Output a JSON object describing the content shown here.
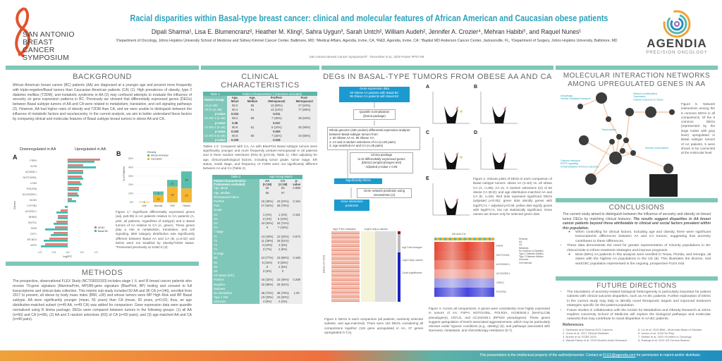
{
  "header": {
    "title": "Racial disparities within Basal-type breast cancer: clinical and molecular features of African American and Caucasian obese patients",
    "authors": "Dipali Sharma¹, Lisa E. Blumencranz², Heather M. Kling², Sahra Uygun³, Sarah Untch², William Audeh², Jennifer A. Crozier⁴, Mehran Habibi⁵, and Raquel Nunes¹",
    "affiliations": "¹Department of Oncology, Johns Hopkins University School of Medicine and Sidney Kimmel Cancer Center, Baltimore, MD; ²Medical Affairs, Agendia, Irvine, CA; ³R&D, Agendia, Irvine, CA; ⁴Baptist MD Anderson Cancer Center, Jacksonville, FL, ⁵Department of Surgery, Johns Hopkins University, Baltimore, MD",
    "meeting": "San Antonio Breast Cancer Symposium® - December 8-11, 2020    Poster #PS7-68",
    "logo_left": "SAN ANTONIO BREAST CANCER SYMPOSIUM",
    "logo_right": "AGENDIA",
    "logo_right_sub": "PRECISION ONCOLOGY"
  },
  "background": {
    "heading": "BACKGROUND",
    "text": "African American breast cancer (BC) patients (AA) are diagnosed at a younger age and present more frequently with triple-negative/Basal tumors than Caucasian American patients (CA) (1). High prevalence of obesity, type 2 diabetes mellitus (T2DM), and metabolic syndrome in AA (2) may confound attempts to evaluate the influence of ancestry on gene expression patterns in BC. Previously we showed that differentially expressed genes (DEGs) between Basal subtype tumors of AA and CA were related to metabolism, translation, and cell signaling pathways (3). However, AA had higher rates of obesity and T2DM than CA, and we were unable to distinguish between the influence of metabolic factors and race/ancestry. In the current analysis, we aim to better understand these factors by comparing clinical and molecular features of Basal subtype breast tumors in obese AA and CA."
  },
  "figure1": {
    "panel_a": "A",
    "panel_b": "B",
    "down_label": "Downregulated in AA",
    "up_label": "Upregulated in AA",
    "caption": "Figure 1.* Significant differentially expressed genes (adj. p≤0.05) in AA patients relative to CA patients (A, pink, all patients, regardless of subtype) and in Basal tumors of AA relative to CA (A, green). These genes play a role in metabolism, translation, and cell signaling. BMI category distribution was significantly different between Basal AA and CA (B, p=0.02) and DEGs were not stratified by obesity/T2DM status. *Presented previously at SABCS (3)"
  },
  "chart_data": [
    {
      "type": "bar",
      "orientation": "horizontal",
      "title": "",
      "xlabel": "log2FC",
      "ylabel": "Genes",
      "xlim": [
        -1.5,
        1.5
      ],
      "xticks": [
        "-1.0",
        "-0.5",
        "0.0",
        "0.5",
        "1.0"
      ],
      "categories": [
        "FSPH",
        "GLP8",
        "AC0928.1",
        "NOTCH2NL",
        "LHX9",
        "POLR3A",
        "AC104339.1",
        "NLGN",
        "CYP7B1",
        "AC0292.1",
        "NPB33",
        "SNTG1",
        "IVNS",
        "CST1",
        "MT-ND3",
        "AFF3"
      ],
      "series": [
        {
          "name": "All BC",
          "color": "#e07b73",
          "values": [
            1.15,
            0.55,
            0.55,
            0.5,
            0.45,
            0.4,
            0.35,
            0.15,
            0,
            -0.25,
            -0.35,
            -0.4,
            -0.45,
            -0.5,
            -0.65,
            -0.8
          ]
        },
        {
          "name": "Basal BC",
          "color": "#3dbdb0",
          "values": [
            0.95,
            1.0,
            0.55,
            0.55,
            0.5,
            0.4,
            0.4,
            0.3,
            -0.1,
            -0.4,
            -0.35,
            -0.5,
            -0.8,
            -0.6,
            -0.85,
            -0.95
          ]
        }
      ]
    },
    {
      "type": "bar",
      "stacked": true,
      "title": "",
      "xlabel": "",
      "ylabel": "% of Patients",
      "ylim": [
        0,
        50
      ],
      "yticks": [
        "0%",
        "10%",
        "20%",
        "30%",
        "40%",
        "50%"
      ],
      "legend_title": "Ethnicity",
      "legend": "top-left",
      "categories": [
        "UW",
        "Normal",
        "OW",
        "Obese"
      ],
      "series": [
        {
          "name": "Caucasian",
          "color": "#f5b731",
          "values": [
            1,
            12,
            26,
            23
          ]
        },
        {
          "name": "African American",
          "color": "#5bbfae",
          "values": [
            0,
            6,
            11,
            28
          ]
        }
      ]
    }
  ],
  "methods": {
    "heading": "METHODS",
    "text": "The prospective, observational FLEX Study (NCT03053193) includes stage I, II, and III breast cancer patients who receive 70-gene signature (MammaPrint, MP)/80-gene signature (BluePrint, BP) testing and consent to full transcriptome and clinical data collection. This interim sub-study included 50 AA and 96 CA (n=146), enrolled from 2017 to present, all obese by body mass index (BMI, ≥30) and whose tumors were MP High Risk and BP Basal subtype. AA were significantly younger (mean, 55 years) than CA (mean, 60 years, p=0.02); thus, an age distribution-matched subset (n=49 AA, n=49 CA) was added for comparison. Gene expression data were quantile normalized using R limma package; DEGs were compared between tumors in the following groups: (1) all AA (n=50) and CA (n=96), (2) AA and 3 random selections (RS) of CA (n=50 pairs), and (3) age-matched AA and CA (n=49 pairs)."
  },
  "clinical": {
    "heading": "CLINICAL CHARACTERISTICS",
    "table1": {
      "title": "Table 1",
      "subtitle": "Patient Characteristics (*unknowns excluded)",
      "headers": [
        "Patient Group",
        "Age, Mean",
        "Age, Median",
        "Pre/Peri-Menopausal",
        "Post-Menopausal"
      ],
      "rows": [
        [
          "AA (n=50)",
          "55.0",
          "55",
          "13 (36%)",
          "27 (64%)"
        ],
        [
          "All CA (n=96)",
          "60.4",
          "61",
          "13 (14%)",
          "77 (86%)"
        ],
        [
          "p-value",
          "0.024",
          "",
          "0.011",
          ""
        ],
        [
          "CA RS-1 (n=50)",
          "59.4",
          "59",
          "7 (16%)",
          "38 (84%)"
        ],
        [
          "p-value",
          "0.08",
          "",
          "0.047",
          ""
        ],
        [
          "CA RS-2 (n=50)",
          "60.8",
          "61",
          "5 (10%)",
          "45 (90%)"
        ],
        [
          "p-value",
          "0.025",
          "",
          "0.005",
          ""
        ],
        [
          "CA RS-3 (n=50)",
          "60.6",
          "60",
          "7 (15%)",
          "40 (85%)"
        ],
        [
          "p-value",
          "0.029",
          "",
          "0.028",
          ""
        ]
      ]
    },
    "caption1": "Tables 1-2. Compared with CA, AA with BluePrint Basal subtype tumors were significantly younger and more frequently pre/peri-menopausal in all patients and in three random selections (RS1-3) (p<0.05, Table 1). After adjusting for age, clinical-pathological factors, including tumor grade, tumor stage, ER status, nodal stage, and frequency of T2DM were not significantly different between AA and CA (Table 2).",
    "table2": {
      "title": "Table 2",
      "subtitle": "Age Group Match",
      "headers": [
        "Patient Characteristics (*unknowns excluded)",
        "AA (n=49)",
        "CA (n=49)",
        "p-value"
      ],
      "rows": [
        [
          "Age, Mean",
          "55",
          "55",
          "0.988"
        ],
        [
          "Age, Median",
          "55",
          "57",
          ""
        ],
        [
          "Menopausal Status",
          "",
          "",
          ""
        ],
        [
          "Pre/Peri",
          "15 (36%)",
          "10 (22%)",
          "0.164"
        ],
        [
          "Post",
          "27 (64%)",
          "36 (78%)",
          ""
        ],
        [
          "Grade",
          "",
          "",
          ""
        ],
        [
          "G1",
          "1 (2%)",
          "1 (2%)",
          "0.181"
        ],
        [
          "G2",
          "2 (4%)",
          "5 (10%)",
          ""
        ],
        [
          "G3",
          "43 (94%)",
          "34 (72%)",
          ""
        ],
        [
          "GX",
          "0",
          "7 (15%)",
          ""
        ],
        [
          "T stage",
          "",
          "",
          ""
        ],
        [
          "T1",
          "13 (43%)",
          "12 (33%)",
          "0.673"
        ],
        [
          "T2",
          "11 (38%)",
          "18 (51%)",
          ""
        ],
        [
          "T3",
          "3 (10%)",
          "2 (6%)",
          ""
        ],
        [
          "T4",
          "2 (7%)",
          "2 (6%)",
          ""
        ],
        [
          "N stage",
          "",
          "",
          ""
        ],
        [
          "N0",
          "24 (77%)",
          "23 (68%)",
          "0.169"
        ],
        [
          "N1",
          "5 (16%)",
          "9 (26%)",
          ""
        ],
        [
          "N2",
          "0",
          "2 (6%)",
          ""
        ],
        [
          "N3",
          "2 (6%)",
          "0",
          ""
        ],
        [
          "ER status (IHC)",
          "",
          "",
          ""
        ],
        [
          "Positive",
          "15 (32%)",
          "22 (46%)",
          "0.208"
        ],
        [
          "Negative",
          "32 (68%)",
          "26 (54%)",
          ""
        ],
        [
          "Diabetes",
          "",
          "",
          ""
        ],
        [
          "No annotation",
          "36 (72%)",
          "38 (76%)",
          "1.00"
        ],
        [
          "Type 1 DM",
          "10 (20%)",
          "10 (20%)",
          ""
        ],
        [
          "Unknown",
          "4 (8%)",
          "2 (4%)",
          ""
        ]
      ]
    }
  },
  "degs": {
    "heading": "DEGs IN BASAL-TYPE TUMORS FROM OBESE AA AND CA",
    "flow": {
      "box1": "Gene expression data\n50 Obese AA patients with Basal BC\n96 Obese CA patients with Basal BC",
      "box2": "Quantile normalization\n(limma package)",
      "box3": "Whole genome (44K probes) differential expression analysis between Basal subtype tumors from:\n1.  50 Obese AA vs. 96 Obese CA\n2.  AA and 3 random selections of CA (n=50 pairs)\n3.  Age-matched AA and CA (n=49 pairs)",
      "box4": "Limma package\nto ID differentially expressed genes\n(DEGs) (empirical bayes test)\nAdjusted p-value ≤ 0.05",
      "box5": "Significantly DEGs",
      "box6": "Gene network prediction using\nGeneMANIA (4)",
      "box7": "Gene interaction\nprediction"
    },
    "heatmap3": {
      "col1": "log2 Fold changes",
      "col2": "-log10 adj p-values",
      "ylabel": "DEGs (n=152)",
      "legend": [
        "log2 Fold changes",
        "-log10 adj p-values",
        "Count significance"
      ]
    },
    "caption3": "Figure 3. DEGs in each comparison (all patients, randomly selected subsets, and age-matched). There were 152 DEGs considering all comparisons together (115 gene upregulated in AA, 37 genes upregulated in CA).",
    "volcano_panels": [
      "A",
      "B",
      "C",
      "D",
      "E"
    ],
    "caption2": "Figure 2. Volcano plots of DEGs in each comparison of Basal subtype tumors: obese AA (n=50) vs. all obese CA (A, n=96); AA vs. 3 random selections (rs) of 50 obese CA (B-D); and age distribution-matched AA and CA (E, n=50). Red dots represent significant DEGs (adjusted p<0.05); green dots identify genes with log2FC>1 + adjusted p<0.05; yellow dots signify genes with log2FC>1, but not statistically significant. Gene names are shown only for selected green dots.",
    "heatmap4": {
      "title": "AA and CA",
      "genes": [
        "FSPH",
        "NOTCH2NL",
        "AC093040.1",
        "AC104339.1",
        "CRAJ1",
        "POLR3A"
      ],
      "ylabel": "DEG",
      "legend": [
        "Ethnicity",
        "AA",
        "CA",
        "Metabolic",
        "No evidence of Diabetes",
        "Type 1 Diabetes Mellitus",
        "Type 2 Diabetes Mellitus",
        "Unknown",
        "Cell intensity"
      ]
    },
    "caption4": "Figure 4. Across all comparisons, 6 genes were consistently more highly expressed in tumors of AA: FSPH, NOTCH2NL, POLR3A, AC093040.1 (MAP1LC3B pseudogene), CRAJ1, and AC104339.1 (RPS20 pseudogene). These genes suggest upregulation of Notch-associated aggressiveness, which may be particularly relevant under hypoxic conditions (e.g., obesity) (5), and pathways associated with stemness, metastasis, and chemotherapy resistance (5-7)."
  },
  "network": {
    "heading": "MOLECULAR INTERACTION NETWORKS AMONG UPREGULATED GENES IN AA",
    "labels": [
      "Autophagy\nVesicle-mediated transport",
      "Histone modifications\nTranslation\nCellular response to stress",
      "Transcription",
      "Calcium transport\nEGFR signaling\nInnate/adaptive immune response",
      "Smooth musculature"
    ],
    "caption": "Figure 5. Network interactions among the 6 common DEGs in all comparisons. Of the 6 common DEGs (represented by the large nodes with gray lines) upregulated in Basal subtype tumors of AA patients, 5 were shown to be connected at the molecular level."
  },
  "conclusions": {
    "heading": "CONCLUSIONS",
    "intro": "The current study aimed to distinguish between the influence of ancestry and obesity on breast tumor DEGs by matching clinical features. ",
    "intro_bold": "The results suggest disparities in AA breast cancer patients beyond those attributable to clinical and social factors prevalent within this population.",
    "sub1": "When controlling for clinical factors, including age and obesity, there were significant transcriptomic differences between AA and CA tumors, suggesting that ancestry contributes to these differences.",
    "bullet2": "These data demonstrate the need for greater representation of minority populations in BC clinical trials to inform treatment strategies and improve prognosis.",
    "sub2": "Most (66%) AA patients in this analysis were enrolled in Texas, Florida, and Georgia, all states with the highest AA populations in the US (8). This illustrates the diverse, real world BC population represented in the ongoing, prospective FLEX trial."
  },
  "future": {
    "heading": "FUTURE DIRECTIONS",
    "b1": "The elucidation of ancestry-related biological heterogeneity is particularly important for patient subsets with clinical outcome disparities, such as AA BC patients. Further exploration of DEGs in the current study may help to identify novel therapeutic targets and improved treatment strategies specific for this patient population.",
    "b2": "Future studies in collaboration with the Center for Metabolism and Obesity Research at Johns Hopkins University School of Medicine will explore the biological pathways and molecular networks that may contribute to racial disparities in AA BC patients.",
    "refs_heading": "References",
    "refs": [
      "1. Sadhwani and Sharma 2021 Cancers",
      "2. Chow et al. 2017 Clinical Diabetes",
      "3. Nunes et al. SCBS 2020",
      "4. Warde-Farley et al. 2010 Nucleic Acids Research",
      "5. Liu et al. 2016 BBA - Molecular Basis of Disease",
      "6. Ivanov et al. 2018 Sci Rep",
      "7. Moftah et al. 2020 Frontiers in Oncology",
      "8. Rastogi et al. 2011 US Census Bureau"
    ]
  },
  "footer": {
    "text": "This presentation is the intellectual property of the author/presenter. Contact at ",
    "email": "FLEX@agendia.com",
    "text2": " for permission to reprint and/or distribute."
  },
  "colors": {
    "teal": "#7fc7b9",
    "title_blue": "#2aa3bd",
    "flow_blue": "#1b9ad0",
    "aa": "#5bbfae",
    "ca": "#f5b731"
  }
}
